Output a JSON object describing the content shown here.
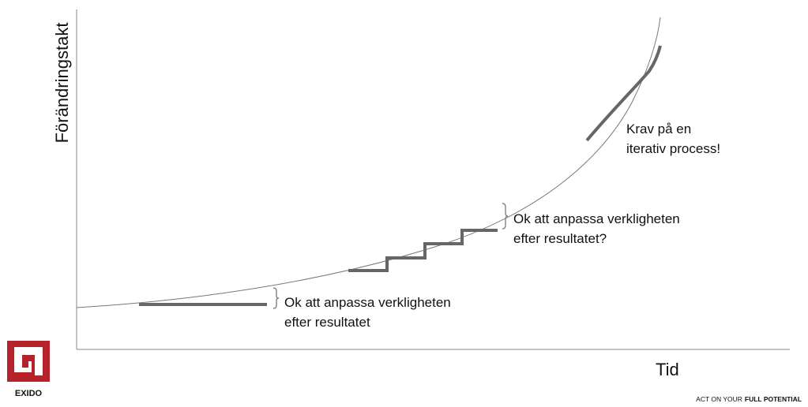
{
  "axes": {
    "y_label": "Förändringstakt",
    "x_label": "Tid"
  },
  "annotations": [
    {
      "lines": [
        "Krav på en",
        "iterativ process!"
      ]
    },
    {
      "lines": [
        "Ok att anpassa verkligheten",
        "efter resultatet?"
      ]
    },
    {
      "lines": [
        "Ok att anpassa verkligheten",
        "efter resultatet"
      ]
    }
  ],
  "logo": {
    "text": "EXIDO"
  },
  "tagline": {
    "regular": "ACT ON YOUR",
    "bold": "FULL POTENTIAL"
  }
}
